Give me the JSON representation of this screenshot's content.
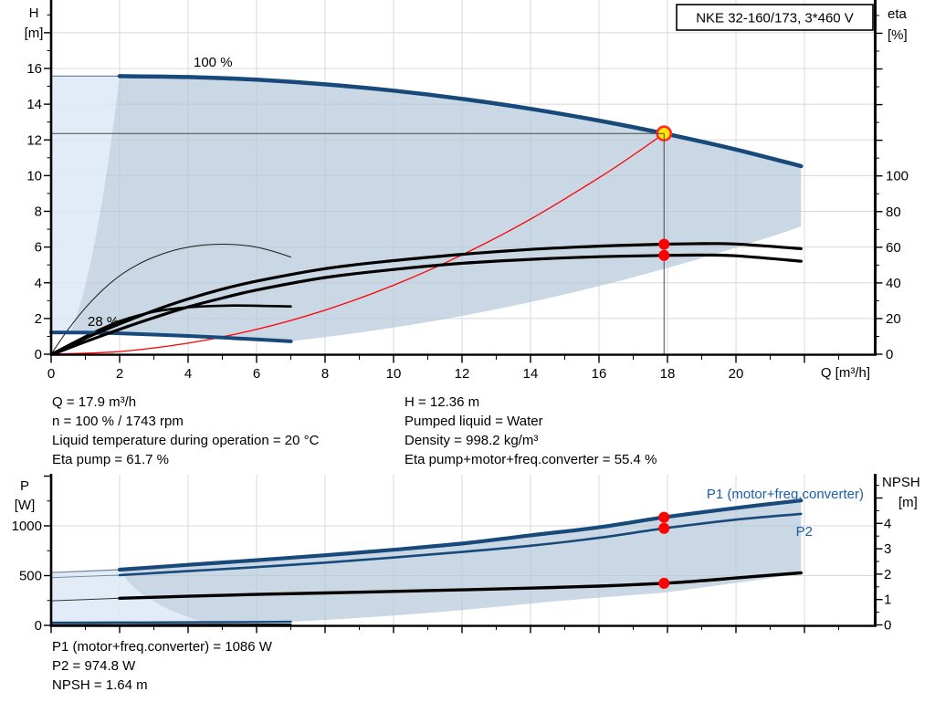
{
  "header": {
    "model_title": "NKE 32-160/173, 3*460 V"
  },
  "top_chart": {
    "y_axis_title_1": "H",
    "y_axis_title_2": "[m]",
    "right_axis_title_1": "eta",
    "right_axis_title_2": "[%]",
    "x_axis_title": "Q [m³/h]",
    "curve_label_100": "100 %",
    "curve_label_28": "28 %",
    "x_tick_labels": [
      "0",
      "2",
      "4",
      "6",
      "8",
      "10",
      "12",
      "14",
      "16",
      "18",
      "20"
    ],
    "y_tick_labels": [
      "0",
      "2",
      "4",
      "6",
      "8",
      "10",
      "12",
      "14",
      "16"
    ],
    "right_tick_labels": [
      "0",
      "20",
      "40",
      "60",
      "80",
      "100"
    ]
  },
  "info_block": {
    "left": [
      "Q = 17.9 m³/h",
      "n = 100 % / 1743 rpm",
      "Liquid temperature during operation = 20 °C",
      "Eta pump = 61.7 %"
    ],
    "right": [
      "H = 12.36 m",
      "Pumped liquid = Water",
      "Density = 998.2 kg/m³",
      "Eta pump+motor+freq.converter = 55.4 %"
    ]
  },
  "bottom_chart": {
    "y_axis_title_1": "P",
    "y_axis_title_2": "[W]",
    "right_axis_title_1": "NPSH",
    "right_axis_title_2": "[m]",
    "p1_curve_label": "P1 (motor+freq.converter)",
    "p2_curve_label": "P2",
    "y_tick_labels": [
      "0",
      "500",
      "1000"
    ],
    "right_tick_labels": [
      "0",
      "1",
      "2",
      "3",
      "4"
    ]
  },
  "result_block": [
    "P1 (motor+freq.converter) = 1086 W",
    "P2 = 974.8 W",
    "NPSH = 1.64 m"
  ],
  "colors": {
    "curve_blue": "#17497b",
    "label_blue": "#1c5fa8",
    "envelope_fill": "#b6c7da",
    "envelope_light_fill": "#dde9f4",
    "grid": "#d8d8d8",
    "axis": "#000000",
    "op_line": "#4a4a4a",
    "red": "#ff0000",
    "op_marker_fill": "#ffe800",
    "op_marker_ring": "#ff2a2a"
  },
  "chart_data": [
    {
      "type": "line",
      "title": "QH / efficiency curves",
      "xlabel": "Q [m³/h]",
      "ylabel": "H [m]",
      "y2label": "eta [%]",
      "xlim": [
        0,
        24.1
      ],
      "ylim": [
        0,
        19.9
      ],
      "y2lim": [
        0,
        199
      ],
      "grid": true,
      "speed_labels": {
        "max": "100 %",
        "min": "28 %"
      },
      "operating_point": {
        "Q": 17.9,
        "H": 12.36,
        "eta_pump": 61.7,
        "eta_total": 55.4
      },
      "series": [
        {
          "name": "head_100_ext_thin",
          "axis": "H",
          "points": [
            [
              0,
              15.57
            ],
            [
              2,
              15.57
            ]
          ]
        },
        {
          "name": "head_100",
          "axis": "H",
          "points": [
            [
              2,
              15.57
            ],
            [
              4,
              15.52
            ],
            [
              6,
              15.37
            ],
            [
              8,
              15.11
            ],
            [
              10,
              14.76
            ],
            [
              12,
              14.3
            ],
            [
              14,
              13.74
            ],
            [
              16,
              13.08
            ],
            [
              17.9,
              12.36
            ],
            [
              20,
              11.46
            ],
            [
              21.9,
              10.53
            ]
          ]
        },
        {
          "name": "head_28",
          "axis": "H",
          "points": [
            [
              0,
              1.22
            ],
            [
              1,
              1.21
            ],
            [
              2,
              1.17
            ],
            [
              3,
              1.1
            ],
            [
              4,
              1.02
            ],
            [
              5,
              0.93
            ],
            [
              6,
              0.83
            ],
            [
              7,
              0.72
            ]
          ]
        },
        {
          "name": "envelope_left_boundary",
          "axis": "H",
          "points": [
            [
              0.56,
              1.22
            ],
            [
              0.65,
              1.65
            ],
            [
              0.8,
              2.5
            ],
            [
              1.0,
              3.9
            ],
            [
              1.2,
              5.6
            ],
            [
              1.4,
              7.6
            ],
            [
              1.6,
              9.95
            ],
            [
              1.8,
              12.6
            ],
            [
              2,
              15.57
            ]
          ]
        },
        {
          "name": "envelope_bottom_boundary",
          "axis": "H",
          "points": [
            [
              7,
              0.72
            ],
            [
              9,
              1.21
            ],
            [
              11,
              1.8
            ],
            [
              13,
              2.52
            ],
            [
              15,
              3.35
            ],
            [
              17,
              4.31
            ],
            [
              19,
              5.38
            ],
            [
              21,
              6.57
            ],
            [
              21.9,
              7.15
            ]
          ]
        },
        {
          "name": "eta_pump_100",
          "axis": "E",
          "points": [
            [
              0.05,
              0
            ],
            [
              1,
              9
            ],
            [
              2,
              17
            ],
            [
              3,
              24.5
            ],
            [
              4,
              31
            ],
            [
              5,
              36.5
            ],
            [
              6,
              41
            ],
            [
              8,
              48
            ],
            [
              10,
              52.5
            ],
            [
              12,
              56
            ],
            [
              14,
              58.8
            ],
            [
              16,
              60.6
            ],
            [
              17.9,
              61.7
            ],
            [
              19,
              62
            ],
            [
              20,
              61.8
            ],
            [
              21.9,
              59.2
            ]
          ]
        },
        {
          "name": "eta_total_100",
          "axis": "E",
          "points": [
            [
              0.05,
              0
            ],
            [
              1,
              7
            ],
            [
              2,
              14
            ],
            [
              3,
              20.5
            ],
            [
              4,
              26.5
            ],
            [
              5,
              31.5
            ],
            [
              6,
              36
            ],
            [
              8,
              43
            ],
            [
              10,
              47.5
            ],
            [
              12,
              51
            ],
            [
              14,
              53.2
            ],
            [
              16,
              54.7
            ],
            [
              17.9,
              55.4
            ],
            [
              19,
              55.6
            ],
            [
              20,
              55.2
            ],
            [
              21.9,
              52.2
            ]
          ]
        },
        {
          "name": "eta_pump_28",
          "axis": "E",
          "points": [
            [
              0,
              0
            ],
            [
              0.5,
              14
            ],
            [
              1,
              26
            ],
            [
              1.5,
              36
            ],
            [
              2,
              44
            ],
            [
              2.5,
              50
            ],
            [
              3,
              54.5
            ],
            [
              3.5,
              57.8
            ],
            [
              4,
              60
            ],
            [
              4.5,
              61.3
            ],
            [
              5,
              61.7
            ],
            [
              5.5,
              61.3
            ],
            [
              6,
              60
            ],
            [
              6.5,
              57.6
            ],
            [
              7,
              54.5
            ]
          ]
        },
        {
          "name": "eta_total_28",
          "axis": "E",
          "points": [
            [
              0,
              0
            ],
            [
              0.5,
              5
            ],
            [
              1,
              10
            ],
            [
              1.5,
              14.5
            ],
            [
              2,
              18.5
            ],
            [
              2.5,
              21.5
            ],
            [
              3,
              23.8
            ],
            [
              3.5,
              25.3
            ],
            [
              4,
              26.3
            ],
            [
              4.5,
              26.9
            ],
            [
              5,
              27.2
            ],
            [
              5.5,
              27.3
            ],
            [
              6,
              27.2
            ],
            [
              6.5,
              27
            ],
            [
              7,
              26.8
            ]
          ]
        },
        {
          "name": "system_curve",
          "axis": "H",
          "points": [
            [
              0,
              0
            ],
            [
              2,
              0.15
            ],
            [
              4,
              0.62
            ],
            [
              6,
              1.39
            ],
            [
              8,
              2.47
            ],
            [
              10,
              3.86
            ],
            [
              12,
              5.56
            ],
            [
              14,
              7.56
            ],
            [
              16,
              9.88
            ],
            [
              17,
              11.15
            ],
            [
              17.9,
              12.36
            ]
          ]
        }
      ]
    },
    {
      "type": "line",
      "title": "Power / NPSH curves",
      "xlabel": "",
      "ylabel": "P [W]",
      "y2label": "NPSH [m]",
      "xlim": [
        0,
        24.1
      ],
      "ylim": [
        0,
        1513
      ],
      "y2lim": [
        0,
        5.9
      ],
      "grid": true,
      "operating_point": {
        "Q": 17.9,
        "P1": 1086,
        "P2": 974.8,
        "NPSH": 1.64
      },
      "series": [
        {
          "name": "p1_ext_thin",
          "axis": "P",
          "points": [
            [
              0,
              530
            ],
            [
              2,
              560
            ]
          ]
        },
        {
          "name": "p1_100",
          "axis": "P",
          "points": [
            [
              2,
              560
            ],
            [
              4,
              608
            ],
            [
              6,
              655
            ],
            [
              8,
              705
            ],
            [
              10,
              760
            ],
            [
              12,
              822
            ],
            [
              14,
              905
            ],
            [
              16,
              985
            ],
            [
              17.9,
              1086
            ],
            [
              20,
              1180
            ],
            [
              21.9,
              1255
            ]
          ]
        },
        {
          "name": "p2_ext_thin",
          "axis": "P",
          "points": [
            [
              0,
              480
            ],
            [
              2,
              505
            ]
          ]
        },
        {
          "name": "p2_100",
          "axis": "P",
          "points": [
            [
              2,
              505
            ],
            [
              4,
              545
            ],
            [
              6,
              585
            ],
            [
              8,
              630
            ],
            [
              10,
              682
            ],
            [
              12,
              738
            ],
            [
              14,
              800
            ],
            [
              16,
              880
            ],
            [
              17.9,
              974.8
            ],
            [
              20,
              1062
            ],
            [
              21.9,
              1120
            ]
          ]
        },
        {
          "name": "npsh_ext_thin",
          "axis": "N",
          "points": [
            [
              0,
              0.95
            ],
            [
              2,
              1.05
            ]
          ]
        },
        {
          "name": "npsh",
          "axis": "N",
          "points": [
            [
              2,
              1.05
            ],
            [
              4,
              1.13
            ],
            [
              6,
              1.2
            ],
            [
              8,
              1.26
            ],
            [
              10,
              1.32
            ],
            [
              12,
              1.38
            ],
            [
              14,
              1.45
            ],
            [
              16,
              1.53
            ],
            [
              17.9,
              1.64
            ],
            [
              19,
              1.74
            ],
            [
              20,
              1.85
            ],
            [
              21.9,
              2.05
            ]
          ]
        },
        {
          "name": "p1_28",
          "axis": "P",
          "points": [
            [
              0,
              27
            ],
            [
              2,
              29
            ],
            [
              4,
              31
            ],
            [
              5.5,
              33
            ],
            [
              7,
              36
            ]
          ]
        },
        {
          "name": "p2_28",
          "axis": "P",
          "points": [
            [
              0,
              4
            ],
            [
              2,
              5
            ],
            [
              4,
              6
            ],
            [
              5.5,
              7
            ],
            [
              7,
              8
            ]
          ]
        },
        {
          "name": "envelope_left_boundary",
          "axis": "P",
          "points": [
            [
              2,
              560
            ],
            [
              2.3,
              420
            ],
            [
              2.8,
              280
            ],
            [
              3.5,
              150
            ],
            [
              4.2,
              60
            ],
            [
              4.7,
              10
            ]
          ]
        },
        {
          "name": "envelope_bottom_boundary",
          "axis": "P",
          "points": [
            [
              4.7,
              10
            ],
            [
              7,
              38
            ],
            [
              9,
              75
            ],
            [
              11,
              125
            ],
            [
              13,
              185
            ],
            [
              15,
              250
            ],
            [
              17,
              305
            ],
            [
              17.9,
              330
            ],
            [
              19,
              380
            ],
            [
              20.5,
              450
            ],
            [
              21.9,
              520
            ]
          ]
        }
      ]
    }
  ]
}
